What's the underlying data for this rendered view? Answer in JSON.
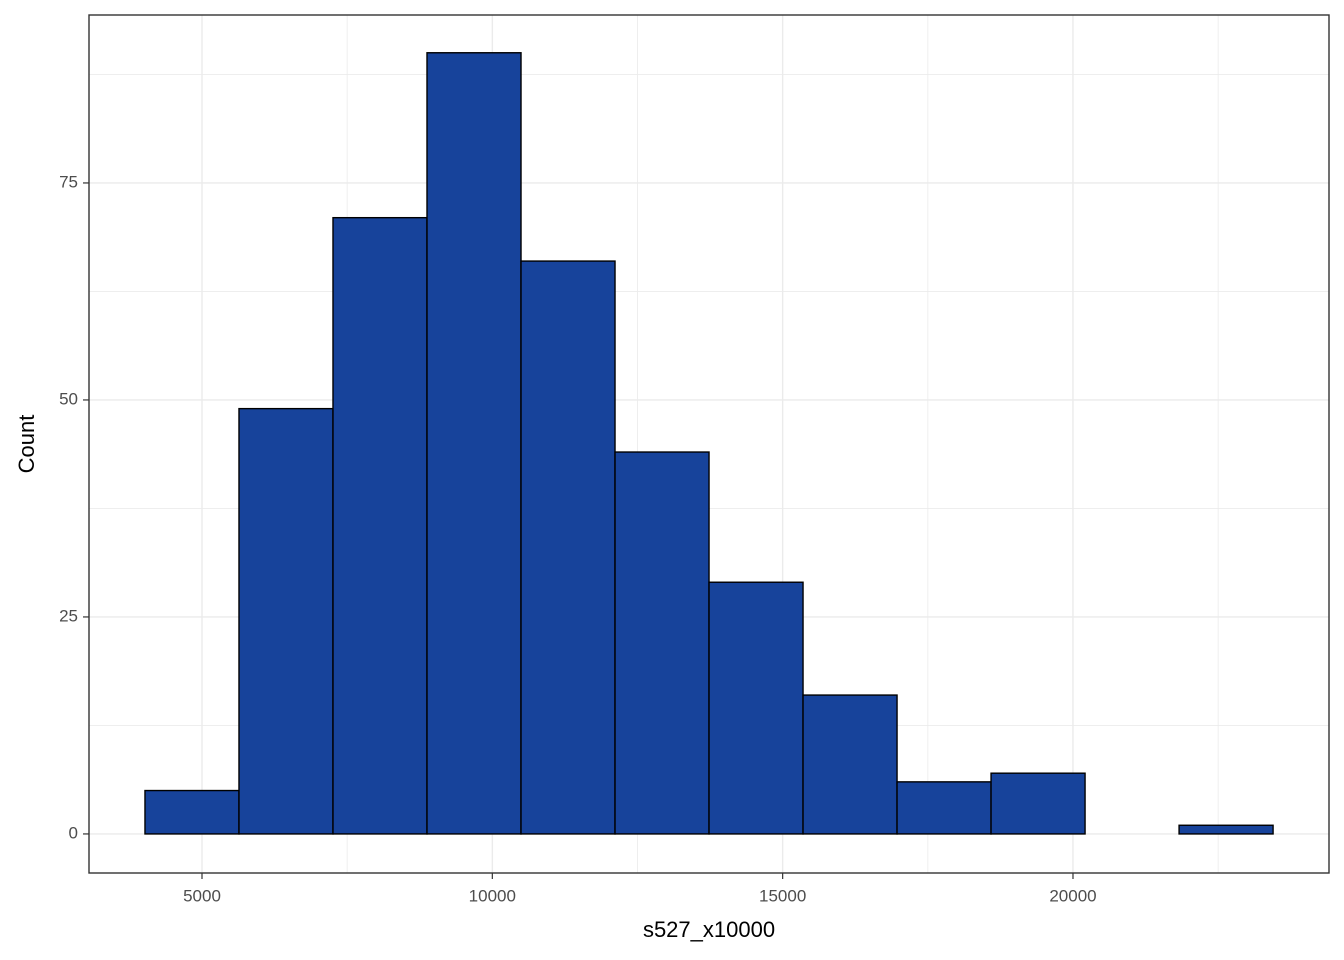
{
  "chart_data": {
    "type": "histogram",
    "x_label": "s527_x10000",
    "y_label": "Count",
    "bins": [
      4018,
      5637,
      7256,
      8875,
      10494,
      12113,
      13732,
      15351,
      16970,
      18589,
      20208,
      21827,
      23446
    ],
    "values": [
      5,
      49,
      71,
      90,
      66,
      44,
      29,
      16,
      6,
      7,
      0,
      1
    ],
    "color": "#17439b",
    "edge_color": "#000000",
    "xlim": [
      3054,
      24409
    ],
    "xticks": [
      5000,
      10000,
      15000,
      20000
    ],
    "ylim": [
      -4.5,
      94.35
    ],
    "yticks": [
      0,
      25,
      50,
      75
    ],
    "grid": true,
    "minor_grid": true
  }
}
